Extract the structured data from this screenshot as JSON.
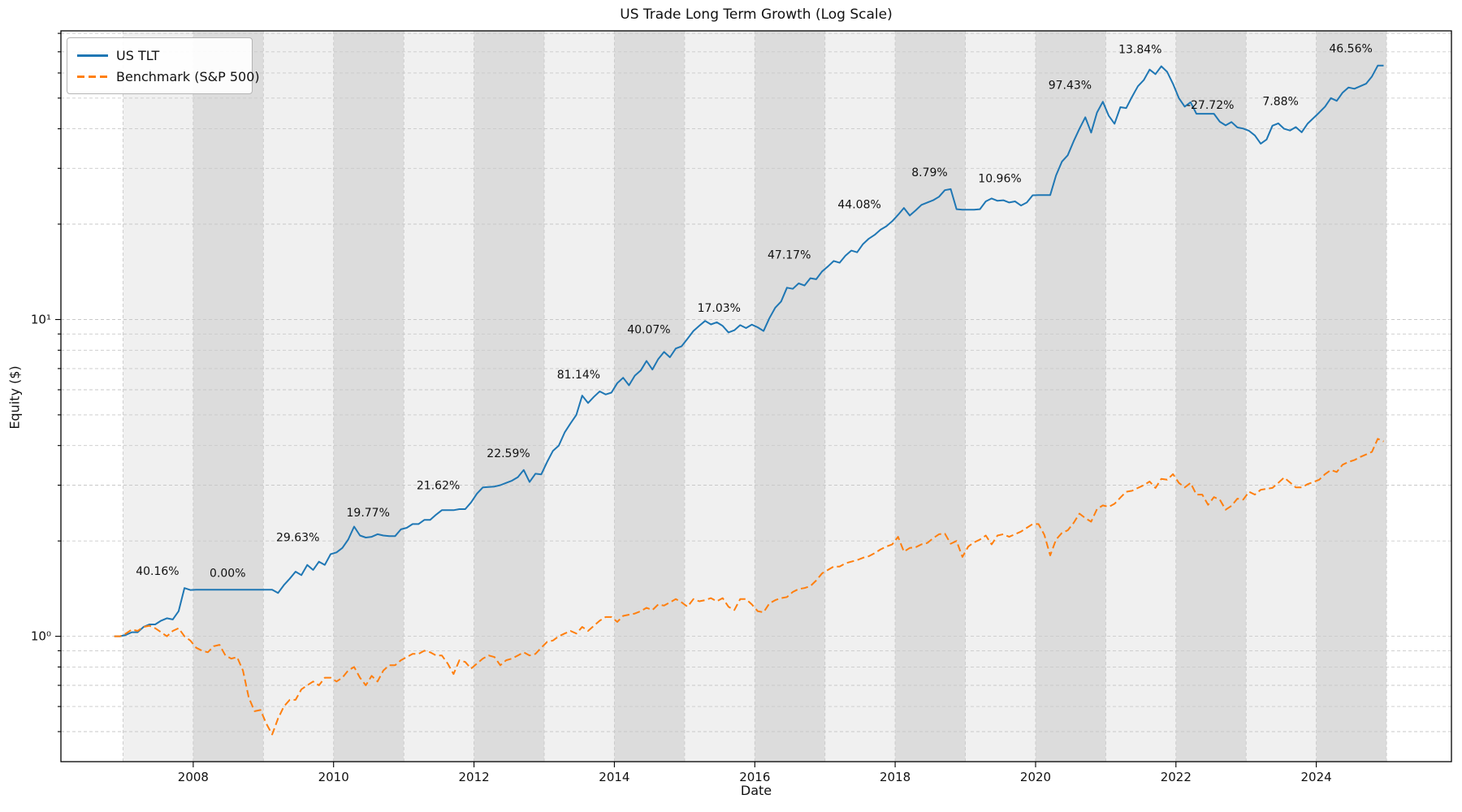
{
  "chart_data": {
    "type": "line",
    "title": "US Trade Long Term Growth (Log Scale)",
    "xlabel": "Date",
    "ylabel": "Equity ($)",
    "yscale": "log",
    "grid": true,
    "legend_position": "upper-left",
    "axes": {
      "x_min_year": 2006.115,
      "x_max_year": 2025.925,
      "y_min": 0.402,
      "y_max": 81.5
    },
    "x_tick_years": [
      2008,
      2010,
      2012,
      2014,
      2016,
      2018,
      2020,
      2022,
      2024
    ],
    "x_gridline_years": [
      2007,
      2008,
      2009,
      2010,
      2011,
      2012,
      2013,
      2014,
      2015,
      2016,
      2017,
      2018,
      2019,
      2020,
      2021,
      2022,
      2023,
      2024,
      2025
    ],
    "y_major_ticks": [
      {
        "value": 1,
        "label": "10⁰"
      },
      {
        "value": 10,
        "label": "10¹"
      }
    ],
    "y_minor_ticks": [
      0.5,
      0.6,
      0.7,
      0.8,
      0.9,
      2,
      3,
      4,
      5,
      6,
      7,
      8,
      9,
      20,
      30,
      40,
      50,
      60,
      70,
      80
    ],
    "bands": {
      "start_year": 2007,
      "end_year": 2025,
      "even_year_color": "#dcdcdc",
      "odd_year_color": "#f0f0f0"
    },
    "grid_color": "#c9c9c9",
    "spine_color": "#000000",
    "series": [
      {
        "name": "US TLT",
        "color": "#1f77b4",
        "style": "solid",
        "start_year_frac": 2006.875,
        "step_years": 0.0833333,
        "values": [
          1.0,
          1.0,
          1.01,
          1.03,
          1.03,
          1.07,
          1.09,
          1.09,
          1.12,
          1.14,
          1.13,
          1.2,
          1.42,
          1.4,
          1.402,
          1.402,
          1.402,
          1.402,
          1.402,
          1.402,
          1.402,
          1.402,
          1.402,
          1.402,
          1.402,
          1.402,
          1.402,
          1.402,
          1.37,
          1.45,
          1.52,
          1.6,
          1.56,
          1.68,
          1.62,
          1.72,
          1.68,
          1.817,
          1.84,
          1.9,
          2.02,
          2.22,
          2.08,
          2.05,
          2.06,
          2.1,
          2.08,
          2.07,
          2.07,
          2.176,
          2.2,
          2.26,
          2.26,
          2.33,
          2.33,
          2.42,
          2.5,
          2.5,
          2.5,
          2.52,
          2.52,
          2.647,
          2.82,
          2.95,
          2.96,
          2.97,
          3.0,
          3.05,
          3.1,
          3.18,
          3.35,
          3.07,
          3.26,
          3.244,
          3.55,
          3.85,
          4.0,
          4.4,
          4.7,
          5.0,
          5.75,
          5.45,
          5.7,
          5.93,
          5.8,
          5.877,
          6.3,
          6.55,
          6.2,
          6.65,
          6.9,
          7.4,
          6.95,
          7.5,
          7.9,
          7.6,
          8.1,
          8.232,
          8.7,
          9.2,
          9.55,
          9.9,
          9.65,
          9.8,
          9.55,
          9.1,
          9.25,
          9.6,
          9.4,
          9.634,
          9.45,
          9.2,
          10.1,
          10.9,
          11.4,
          12.6,
          12.5,
          13.0,
          12.8,
          13.5,
          13.4,
          14.18,
          14.7,
          15.3,
          15.1,
          15.9,
          16.5,
          16.3,
          17.3,
          18.0,
          18.5,
          19.2,
          19.7,
          20.43,
          21.4,
          22.5,
          21.3,
          22.1,
          23.0,
          23.4,
          23.8,
          24.4,
          25.6,
          25.8,
          22.3,
          22.22,
          22.22,
          22.22,
          22.3,
          23.6,
          24.1,
          23.7,
          23.8,
          23.4,
          23.6,
          22.9,
          23.4,
          24.66,
          24.7,
          24.7,
          24.7,
          28.5,
          31.5,
          33.0,
          36.5,
          40.0,
          43.5,
          38.9,
          45.0,
          48.69,
          44.0,
          41.5,
          46.8,
          46.5,
          50.5,
          54.5,
          57.0,
          61.5,
          59.5,
          63.0,
          60.5,
          55.42,
          50.0,
          47.0,
          48.5,
          44.6,
          44.6,
          44.6,
          44.6,
          42.1,
          41.0,
          42.0,
          40.4,
          40.06,
          39.4,
          38.1,
          35.9,
          37.0,
          40.9,
          41.6,
          40.0,
          39.5,
          40.5,
          39.0,
          41.5,
          43.22,
          45.0,
          47.0,
          50.0,
          49.0,
          52.0,
          54.0,
          53.5,
          54.5,
          55.5,
          58.5,
          63.3,
          63.34
        ]
      },
      {
        "name": "Benchmark (S&P 500)",
        "color": "#ff7f0e",
        "style": "dashed",
        "start_year_frac": 2006.875,
        "step_years": 0.0833333,
        "values": [
          1.0,
          1.0,
          1.02,
          1.05,
          1.04,
          1.07,
          1.08,
          1.06,
          1.03,
          1.0,
          1.04,
          1.06,
          1.0,
          0.97,
          0.92,
          0.9,
          0.89,
          0.93,
          0.94,
          0.87,
          0.85,
          0.86,
          0.78,
          0.64,
          0.58,
          0.585,
          0.53,
          0.49,
          0.55,
          0.6,
          0.63,
          0.63,
          0.68,
          0.7,
          0.72,
          0.7,
          0.74,
          0.74,
          0.72,
          0.74,
          0.78,
          0.8,
          0.74,
          0.7,
          0.75,
          0.72,
          0.78,
          0.81,
          0.81,
          0.84,
          0.86,
          0.88,
          0.88,
          0.9,
          0.89,
          0.87,
          0.87,
          0.82,
          0.76,
          0.84,
          0.83,
          0.79,
          0.82,
          0.85,
          0.87,
          0.86,
          0.81,
          0.84,
          0.85,
          0.87,
          0.89,
          0.87,
          0.88,
          0.92,
          0.96,
          0.97,
          1.0,
          1.02,
          1.04,
          1.02,
          1.07,
          1.04,
          1.08,
          1.12,
          1.15,
          1.15,
          1.11,
          1.16,
          1.17,
          1.18,
          1.2,
          1.23,
          1.21,
          1.26,
          1.25,
          1.28,
          1.31,
          1.28,
          1.24,
          1.31,
          1.29,
          1.3,
          1.32,
          1.29,
          1.32,
          1.24,
          1.21,
          1.31,
          1.31,
          1.26,
          1.2,
          1.19,
          1.27,
          1.3,
          1.32,
          1.33,
          1.38,
          1.41,
          1.42,
          1.44,
          1.5,
          1.58,
          1.62,
          1.66,
          1.66,
          1.7,
          1.72,
          1.74,
          1.77,
          1.79,
          1.83,
          1.88,
          1.92,
          1.95,
          2.06,
          1.85,
          1.9,
          1.91,
          1.95,
          1.97,
          2.04,
          2.1,
          2.11,
          1.96,
          2.0,
          1.78,
          1.92,
          1.98,
          2.02,
          2.08,
          1.95,
          2.08,
          2.1,
          2.06,
          2.1,
          2.14,
          2.2,
          2.26,
          2.26,
          2.09,
          1.8,
          2.02,
          2.12,
          2.16,
          2.28,
          2.44,
          2.36,
          2.3,
          2.52,
          2.59,
          2.56,
          2.62,
          2.74,
          2.86,
          2.88,
          2.94,
          3.0,
          3.08,
          2.94,
          3.14,
          3.12,
          3.25,
          3.05,
          2.95,
          3.05,
          2.8,
          2.8,
          2.6,
          2.75,
          2.7,
          2.51,
          2.58,
          2.72,
          2.7,
          2.86,
          2.8,
          2.9,
          2.92,
          2.94,
          3.05,
          3.17,
          3.06,
          2.95,
          2.95,
          3.02,
          3.07,
          3.12,
          3.25,
          3.35,
          3.3,
          3.48,
          3.55,
          3.6,
          3.68,
          3.75,
          3.82,
          4.2,
          4.12
        ]
      }
    ],
    "annotations": [
      {
        "year": 2007,
        "label": "40.16%"
      },
      {
        "year": 2008,
        "label": "0.00%"
      },
      {
        "year": 2009,
        "label": "29.63%"
      },
      {
        "year": 2010,
        "label": "19.77%"
      },
      {
        "year": 2011,
        "label": "21.62%"
      },
      {
        "year": 2012,
        "label": "22.59%"
      },
      {
        "year": 2013,
        "label": "81.14%"
      },
      {
        "year": 2014,
        "label": "40.07%"
      },
      {
        "year": 2015,
        "label": "17.03%"
      },
      {
        "year": 2016,
        "label": "47.17%"
      },
      {
        "year": 2017,
        "label": "44.08%"
      },
      {
        "year": 2018,
        "label": "8.79%"
      },
      {
        "year": 2019,
        "label": "10.96%"
      },
      {
        "year": 2020,
        "label": "97.43%"
      },
      {
        "year": 2021,
        "label": "13.84%"
      },
      {
        "year": 2022,
        "label": "-27.72%"
      },
      {
        "year": 2023,
        "label": "7.88%"
      },
      {
        "year": 2024,
        "label": "46.56%"
      }
    ],
    "legend": {
      "entries": [
        {
          "label": "US TLT",
          "color": "#1f77b4",
          "style": "solid"
        },
        {
          "label": "Benchmark (S&P 500)",
          "color": "#ff7f0e",
          "style": "dashed"
        }
      ]
    }
  }
}
